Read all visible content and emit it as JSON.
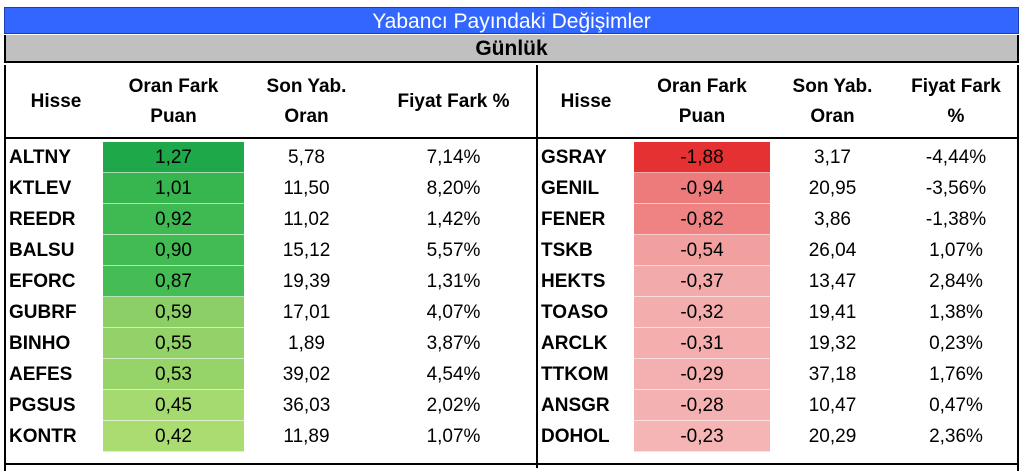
{
  "title": "Yabancı Payındaki Değişimler",
  "subtitle": "Günlük",
  "left": {
    "headers": {
      "hisse": [
        "Hisse"
      ],
      "oran_fark": [
        "Oran Fark",
        "Puan"
      ],
      "son_yab": [
        "Son Yab.",
        "Oran"
      ],
      "fiyat_fark": [
        "Fiyat Fark %"
      ]
    },
    "rows": [
      {
        "hisse": "ALTNY",
        "oran_fark": "1,27",
        "son_yab": "5,78",
        "fiyat_fark": "7,14%",
        "color": "#1fa84a"
      },
      {
        "hisse": "KTLEV",
        "oran_fark": "1,01",
        "son_yab": "11,50",
        "fiyat_fark": "8,20%",
        "color": "#37b64f"
      },
      {
        "hisse": "REEDR",
        "oran_fark": "0,92",
        "son_yab": "11,02",
        "fiyat_fark": "1,42%",
        "color": "#3fba52"
      },
      {
        "hisse": "BALSU",
        "oran_fark": "0,90",
        "son_yab": "15,12",
        "fiyat_fark": "5,57%",
        "color": "#42bb53"
      },
      {
        "hisse": "EFORC",
        "oran_fark": "0,87",
        "son_yab": "19,39",
        "fiyat_fark": "1,31%",
        "color": "#45bd54"
      },
      {
        "hisse": "GUBRF",
        "oran_fark": "0,59",
        "son_yab": "17,01",
        "fiyat_fark": "4,07%",
        "color": "#8bcf66"
      },
      {
        "hisse": "BINHO",
        "oran_fark": "0,55",
        "son_yab": "1,89",
        "fiyat_fark": "3,87%",
        "color": "#92d268"
      },
      {
        "hisse": "AEFES",
        "oran_fark": "0,53",
        "son_yab": "39,02",
        "fiyat_fark": "4,54%",
        "color": "#96d46a"
      },
      {
        "hisse": "PGSUS",
        "oran_fark": "0,45",
        "son_yab": "36,03",
        "fiyat_fark": "2,02%",
        "color": "#a5da70"
      },
      {
        "hisse": "KONTR",
        "oran_fark": "0,42",
        "son_yab": "11,89",
        "fiyat_fark": "1,07%",
        "color": "#abdc72"
      }
    ]
  },
  "right": {
    "headers": {
      "hisse": [
        "Hisse"
      ],
      "oran_fark": [
        "Oran Fark",
        "Puan"
      ],
      "son_yab": [
        "Son Yab.",
        "Oran"
      ],
      "fiyat_fark": [
        "Fiyat Fark",
        "%"
      ]
    },
    "rows": [
      {
        "hisse": "GSRAY",
        "oran_fark": "-1,88",
        "son_yab": "3,17",
        "fiyat_fark": "-4,44%",
        "color": "#e53131"
      },
      {
        "hisse": "GENIL",
        "oran_fark": "-0,94",
        "son_yab": "20,95",
        "fiyat_fark": "-3,56%",
        "color": "#ee7b7b"
      },
      {
        "hisse": "FENER",
        "oran_fark": "-0,82",
        "son_yab": "3,86",
        "fiyat_fark": "-1,38%",
        "color": "#ef8383"
      },
      {
        "hisse": "TSKB",
        "oran_fark": "-0,54",
        "son_yab": "26,04",
        "fiyat_fark": "1,07%",
        "color": "#f29f9f"
      },
      {
        "hisse": "HEKTS",
        "oran_fark": "-0,37",
        "son_yab": "13,47",
        "fiyat_fark": "2,84%",
        "color": "#f3aaaa"
      },
      {
        "hisse": "TOASO",
        "oran_fark": "-0,32",
        "son_yab": "19,41",
        "fiyat_fark": "1,38%",
        "color": "#f4adad"
      },
      {
        "hisse": "ARCLK",
        "oran_fark": "-0,31",
        "son_yab": "19,32",
        "fiyat_fark": "0,23%",
        "color": "#f4aeae"
      },
      {
        "hisse": "TTKOM",
        "oran_fark": "-0,29",
        "son_yab": "37,18",
        "fiyat_fark": "1,76%",
        "color": "#f4b0b0"
      },
      {
        "hisse": "ANSGR",
        "oran_fark": "-0,28",
        "son_yab": "10,47",
        "fiyat_fark": "0,47%",
        "color": "#f4b1b1"
      },
      {
        "hisse": "DOHOL",
        "oran_fark": "-0,23",
        "son_yab": "20,29",
        "fiyat_fark": "2,36%",
        "color": "#f5b5b5"
      }
    ]
  }
}
